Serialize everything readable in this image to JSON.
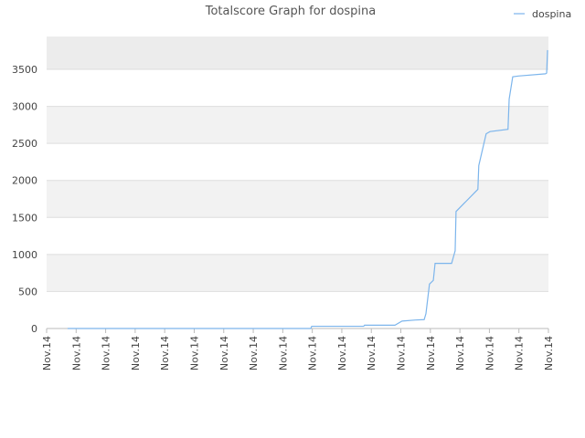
{
  "chart_data": {
    "type": "line",
    "title": "Totalscore Graph for dospina",
    "x": [
      0.71,
      8.95,
      8.98,
      10.74,
      10.77,
      11.8,
      12.04,
      12.5,
      12.79,
      12.85,
      12.97,
      13.1,
      13.16,
      13.72,
      13.84,
      13.87,
      14.61,
      14.64,
      14.89,
      15.02,
      15.63,
      15.67,
      15.79,
      15.98,
      16.9,
      16.94,
      16.97
    ],
    "series": [
      {
        "name": "dospina",
        "color": "#7cb5ec",
        "values": [
          0,
          0,
          30,
          30,
          45,
          45,
          100,
          115,
          120,
          200,
          600,
          650,
          880,
          880,
          1050,
          1580,
          1880,
          2200,
          2630,
          2660,
          2690,
          3100,
          3400,
          3410,
          3440,
          3450,
          3760
        ]
      }
    ],
    "xlim": [
      0,
      17
    ],
    "xticks": [
      {
        "value": 0,
        "label": "Nov.14"
      },
      {
        "value": 1,
        "label": "Nov.14"
      },
      {
        "value": 2,
        "label": "Nov.14"
      },
      {
        "value": 3,
        "label": "Nov.14"
      },
      {
        "value": 4,
        "label": "Nov.14"
      },
      {
        "value": 5,
        "label": "Nov.14"
      },
      {
        "value": 6,
        "label": "Nov.14"
      },
      {
        "value": 7,
        "label": "Nov.14"
      },
      {
        "value": 8,
        "label": "Nov.14"
      },
      {
        "value": 9,
        "label": "Nov.14"
      },
      {
        "value": 10,
        "label": "Nov.14"
      },
      {
        "value": 11,
        "label": "Nov.14"
      },
      {
        "value": 12,
        "label": "Nov.14"
      },
      {
        "value": 13,
        "label": "Nov.14"
      },
      {
        "value": 14,
        "label": "Nov.14"
      },
      {
        "value": 15,
        "label": "Nov.14"
      },
      {
        "value": 16,
        "label": "Nov.14"
      },
      {
        "value": 17,
        "label": "Nov.14"
      }
    ],
    "ylim": [
      0,
      3944
    ],
    "yticks": [
      0,
      500,
      1000,
      1500,
      2000,
      2500,
      3000,
      3500
    ],
    "grid": true,
    "legend": "top-right"
  }
}
